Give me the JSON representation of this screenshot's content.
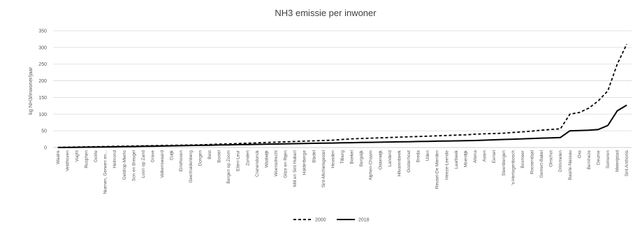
{
  "chart_data": {
    "type": "line",
    "title": "NH3 emissie per inwoner",
    "xlabel": "",
    "ylabel": "kg NH3/inwoner/jaar",
    "ylim": [
      0,
      350
    ],
    "yticks": [
      0,
      50,
      100,
      150,
      200,
      250,
      300,
      350
    ],
    "grid": true,
    "legend_position": "bottom",
    "categories": [
      "Waalre",
      "Veldhoven",
      "Vught",
      "Rucphen",
      "Goirle",
      "Nuenen, Gerwen en...",
      "Helmond",
      "Geldrop-Mierlo",
      "Son en Breugel",
      "Loon op Zand",
      "Grave",
      "Valkenswaard",
      "Cuijk",
      "Eindhoven",
      "Geertruidenberg",
      "Dongen",
      "Best",
      "Boxtel",
      "Bergen op Zoom",
      "Etten-Leur",
      "Zundert",
      "Cranendonck",
      "Waalwijk",
      "Woensdrecht",
      "Gilze en Rijen",
      "Mill en Sint Hubert",
      "Halderberge",
      "Bladel",
      "Sint-Michielsgestel",
      "Heusden",
      "Tilburg",
      "Boekel",
      "Bergeijk",
      "Alphen-Chaam",
      "Oisterwijk",
      "Landerd",
      "Hilvarenbeek",
      "Oosterhout",
      "Breda",
      "Uden",
      "Reusel-De Mierden",
      "Heeze-Leende",
      "Laarbeek",
      "Moerdijk",
      "Altena",
      "Asten",
      "Eersel",
      "Steenbergen",
      "'s-Hertogenbosch",
      "Boxmeer",
      "Roosendaal",
      "Gemert-Bakel",
      "Oirschot",
      "Drimmelen",
      "Baarle-Nassau",
      "Oss",
      "Bernheze",
      "Deurne",
      "Someren",
      "Meierijstad",
      "Sint Anthonis"
    ],
    "series": [
      {
        "name": "2000",
        "values": [
          0.5,
          1,
          1.5,
          2,
          2.5,
          3,
          3.5,
          4,
          4.5,
          5,
          5.5,
          6,
          6.5,
          7,
          7.5,
          8,
          9,
          10,
          11,
          12,
          13,
          14,
          15,
          16,
          17,
          18,
          19,
          20,
          21,
          22,
          24,
          26,
          27,
          28,
          29,
          30,
          31,
          32,
          33,
          34,
          35,
          36,
          37,
          38,
          40,
          41,
          42,
          43,
          45,
          47,
          49,
          52,
          54,
          56,
          100,
          105,
          118,
          140,
          170,
          250,
          310
        ]
      },
      {
        "name": "2018",
        "values": [
          0,
          0.3,
          0.6,
          1,
          1.3,
          1.6,
          2,
          2.5,
          3,
          3.5,
          4,
          4.5,
          5,
          5.5,
          6,
          6.5,
          7,
          7.5,
          8,
          8.5,
          9,
          9.5,
          10,
          10.5,
          11,
          11.5,
          12,
          12.5,
          13,
          13.5,
          14,
          14.5,
          15,
          15.5,
          16,
          16.5,
          17,
          17.5,
          18,
          18.5,
          19,
          19.5,
          20,
          20.5,
          21,
          22,
          23,
          24,
          25,
          26,
          27,
          28,
          29,
          30,
          50,
          51,
          52,
          54,
          66,
          110,
          127
        ]
      }
    ]
  },
  "colors": {
    "line": "#000000",
    "grid": "#d9d9d9",
    "axis": "#bfbfbf"
  }
}
